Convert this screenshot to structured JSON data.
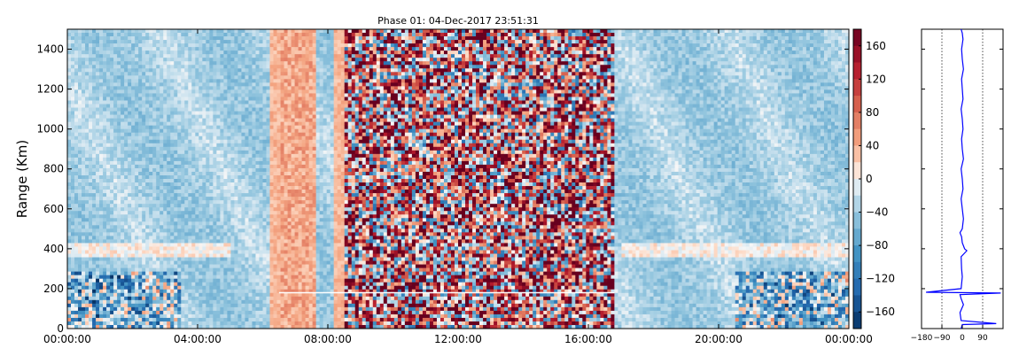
{
  "chart_data": [
    {
      "type": "heatmap",
      "title": "Phase 01: 04-Dec-2017 23:51:31",
      "ylabel": "Range (Km)",
      "xlabel": "",
      "x_ticks": [
        "00:00:00",
        "04:00:00",
        "08:00:00",
        "12:00:00",
        "16:00:00",
        "20:00:00",
        "00:00:00"
      ],
      "x_range_hours": [
        0,
        24
      ],
      "y_ticks": [
        0,
        200,
        400,
        600,
        800,
        1000,
        1200,
        1400
      ],
      "ylim": [
        0,
        1500
      ],
      "colormap": "RdBu_r",
      "colorbar": {
        "ticks": [
          160,
          120,
          80,
          40,
          0,
          -40,
          -80,
          -120,
          -160
        ],
        "range": [
          -180,
          180
        ]
      },
      "colors": {
        "max_red": "#67001f",
        "red": "#c43c3c",
        "light_red": "#f4a582",
        "neutral": "#f7f7f7",
        "light_blue": "#92c5de",
        "blue": "#2166ac",
        "max_blue": "#053061"
      },
      "description_of_values": {
        "range_km": [
          0,
          1500
        ],
        "noisy_bands_hours": [
          [
            6.5,
            7.6
          ],
          [
            8.5,
            16.8
          ]
        ]
      }
    },
    {
      "type": "line",
      "x_ticks": [
        "−180",
        "−90",
        "0",
        "90"
      ],
      "xlim": [
        -180,
        180
      ],
      "ylim": [
        0,
        1500
      ],
      "grid_x": [
        -90,
        90
      ],
      "line_color": "#0000ff",
      "profile": {
        "range_km": [
          0,
          20,
          25,
          40,
          80,
          120,
          150,
          170,
          178,
          182,
          200,
          260,
          300,
          360,
          390,
          400,
          430,
          460,
          480,
          500,
          550,
          600,
          650,
          700,
          750,
          800,
          850,
          900,
          950,
          1000,
          1050,
          1100,
          1150,
          1200,
          1250,
          1300,
          1350,
          1400,
          1450,
          1480,
          1500
        ],
        "phase_deg": [
          -5,
          0,
          150,
          -5,
          -10,
          5,
          -5,
          -10,
          170,
          -160,
          -5,
          0,
          -3,
          -5,
          20,
          10,
          0,
          -3,
          -10,
          0,
          5,
          0,
          -5,
          3,
          0,
          -5,
          5,
          0,
          -3,
          3,
          0,
          -5,
          3,
          0,
          -3,
          5,
          0,
          -3,
          3,
          0,
          -5
        ]
      }
    }
  ]
}
